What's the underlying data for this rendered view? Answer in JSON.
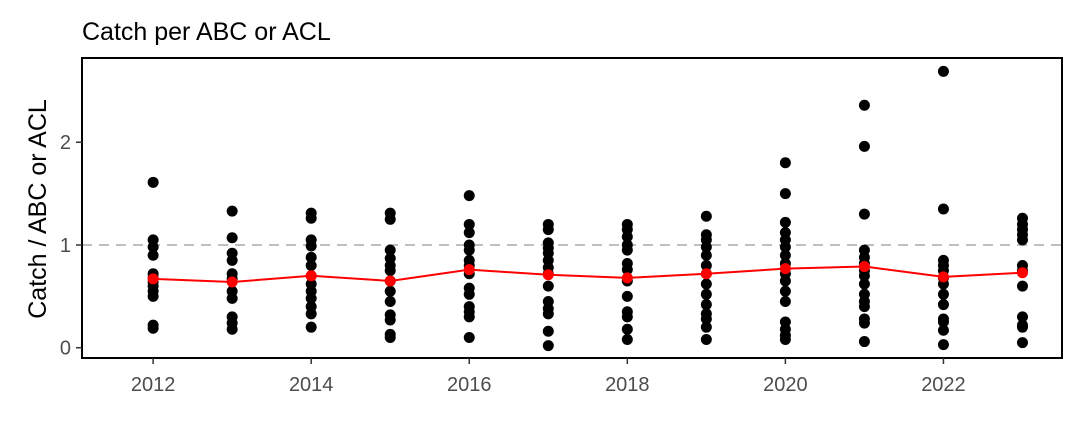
{
  "chart_data": {
    "type": "scatter",
    "title": "Catch per ABC or ACL",
    "xlabel": "",
    "ylabel": "Catch / ABC or ACL",
    "xlim": [
      2011.1,
      2023.5
    ],
    "ylim": [
      -0.1,
      2.82
    ],
    "x_ticks": [
      2012,
      2014,
      2016,
      2018,
      2020,
      2022
    ],
    "y_ticks": [
      0,
      1,
      2
    ],
    "reference_line": {
      "y": 1,
      "style": "dashed",
      "color": "#bfbfbf"
    },
    "grid": false,
    "series": [
      {
        "points_color": "#000000",
        "points": [
          [
            2012,
            1.61
          ],
          [
            2012,
            1.05
          ],
          [
            2012,
            0.98
          ],
          [
            2012,
            0.9
          ],
          [
            2012,
            0.72
          ],
          [
            2012,
            0.68
          ],
          [
            2012,
            0.64
          ],
          [
            2012,
            0.6
          ],
          [
            2012,
            0.55
          ],
          [
            2012,
            0.5
          ],
          [
            2012,
            0.22
          ],
          [
            2012,
            0.19
          ],
          [
            2013,
            1.33
          ],
          [
            2013,
            1.07
          ],
          [
            2013,
            0.92
          ],
          [
            2013,
            0.85
          ],
          [
            2013,
            0.72
          ],
          [
            2013,
            0.67
          ],
          [
            2013,
            0.55
          ],
          [
            2013,
            0.48
          ],
          [
            2013,
            0.3
          ],
          [
            2013,
            0.24
          ],
          [
            2013,
            0.18
          ],
          [
            2014,
            1.31
          ],
          [
            2014,
            1.26
          ],
          [
            2014,
            1.05
          ],
          [
            2014,
            0.99
          ],
          [
            2014,
            0.88
          ],
          [
            2014,
            0.8
          ],
          [
            2014,
            0.7
          ],
          [
            2014,
            0.62
          ],
          [
            2014,
            0.55
          ],
          [
            2014,
            0.48
          ],
          [
            2014,
            0.4
          ],
          [
            2014,
            0.33
          ],
          [
            2014,
            0.2
          ],
          [
            2015,
            1.31
          ],
          [
            2015,
            1.25
          ],
          [
            2015,
            0.95
          ],
          [
            2015,
            0.87
          ],
          [
            2015,
            0.8
          ],
          [
            2015,
            0.75
          ],
          [
            2015,
            0.65
          ],
          [
            2015,
            0.55
          ],
          [
            2015,
            0.45
          ],
          [
            2015,
            0.32
          ],
          [
            2015,
            0.27
          ],
          [
            2015,
            0.13
          ],
          [
            2015,
            0.1
          ],
          [
            2016,
            1.48
          ],
          [
            2016,
            1.2
          ],
          [
            2016,
            1.12
          ],
          [
            2016,
            1.0
          ],
          [
            2016,
            0.95
          ],
          [
            2016,
            0.85
          ],
          [
            2016,
            0.8
          ],
          [
            2016,
            0.72
          ],
          [
            2016,
            0.58
          ],
          [
            2016,
            0.52
          ],
          [
            2016,
            0.4
          ],
          [
            2016,
            0.35
          ],
          [
            2016,
            0.3
          ],
          [
            2016,
            0.1
          ],
          [
            2017,
            1.2
          ],
          [
            2017,
            1.15
          ],
          [
            2017,
            1.02
          ],
          [
            2017,
            0.97
          ],
          [
            2017,
            0.92
          ],
          [
            2017,
            0.85
          ],
          [
            2017,
            0.78
          ],
          [
            2017,
            0.72
          ],
          [
            2017,
            0.6
          ],
          [
            2017,
            0.45
          ],
          [
            2017,
            0.38
          ],
          [
            2017,
            0.33
          ],
          [
            2017,
            0.16
          ],
          [
            2017,
            0.02
          ],
          [
            2018,
            1.2
          ],
          [
            2018,
            1.15
          ],
          [
            2018,
            1.08
          ],
          [
            2018,
            1.0
          ],
          [
            2018,
            0.95
          ],
          [
            2018,
            0.82
          ],
          [
            2018,
            0.76
          ],
          [
            2018,
            0.65
          ],
          [
            2018,
            0.5
          ],
          [
            2018,
            0.35
          ],
          [
            2018,
            0.3
          ],
          [
            2018,
            0.18
          ],
          [
            2018,
            0.08
          ],
          [
            2019,
            1.28
          ],
          [
            2019,
            1.1
          ],
          [
            2019,
            1.05
          ],
          [
            2019,
            0.98
          ],
          [
            2019,
            0.9
          ],
          [
            2019,
            0.8
          ],
          [
            2019,
            0.72
          ],
          [
            2019,
            0.62
          ],
          [
            2019,
            0.52
          ],
          [
            2019,
            0.42
          ],
          [
            2019,
            0.33
          ],
          [
            2019,
            0.28
          ],
          [
            2019,
            0.2
          ],
          [
            2019,
            0.08
          ],
          [
            2020,
            1.8
          ],
          [
            2020,
            1.5
          ],
          [
            2020,
            1.22
          ],
          [
            2020,
            1.12
          ],
          [
            2020,
            1.05
          ],
          [
            2020,
            0.98
          ],
          [
            2020,
            0.9
          ],
          [
            2020,
            0.82
          ],
          [
            2020,
            0.72
          ],
          [
            2020,
            0.65
          ],
          [
            2020,
            0.55
          ],
          [
            2020,
            0.45
          ],
          [
            2020,
            0.25
          ],
          [
            2020,
            0.18
          ],
          [
            2020,
            0.12
          ],
          [
            2020,
            0.08
          ],
          [
            2021,
            2.36
          ],
          [
            2021,
            1.96
          ],
          [
            2021,
            1.3
          ],
          [
            2021,
            0.95
          ],
          [
            2021,
            0.88
          ],
          [
            2021,
            0.82
          ],
          [
            2021,
            0.75
          ],
          [
            2021,
            0.7
          ],
          [
            2021,
            0.62
          ],
          [
            2021,
            0.52
          ],
          [
            2021,
            0.45
          ],
          [
            2021,
            0.4
          ],
          [
            2021,
            0.28
          ],
          [
            2021,
            0.24
          ],
          [
            2021,
            0.06
          ],
          [
            2022,
            2.69
          ],
          [
            2022,
            1.35
          ],
          [
            2022,
            0.85
          ],
          [
            2022,
            0.8
          ],
          [
            2022,
            0.75
          ],
          [
            2022,
            0.68
          ],
          [
            2022,
            0.62
          ],
          [
            2022,
            0.52
          ],
          [
            2022,
            0.42
          ],
          [
            2022,
            0.28
          ],
          [
            2022,
            0.25
          ],
          [
            2022,
            0.17
          ],
          [
            2022,
            0.03
          ],
          [
            2023,
            1.26
          ],
          [
            2023,
            1.2
          ],
          [
            2023,
            1.15
          ],
          [
            2023,
            1.1
          ],
          [
            2023,
            1.05
          ],
          [
            2023,
            0.8
          ],
          [
            2023,
            0.75
          ],
          [
            2023,
            0.6
          ],
          [
            2023,
            0.3
          ],
          [
            2023,
            0.22
          ],
          [
            2023,
            0.2
          ],
          [
            2023,
            0.05
          ]
        ]
      },
      {
        "line_color": "#ff0000",
        "points": [
          [
            2012,
            0.67
          ],
          [
            2013,
            0.64
          ],
          [
            2014,
            0.7
          ],
          [
            2015,
            0.65
          ],
          [
            2016,
            0.76
          ],
          [
            2017,
            0.71
          ],
          [
            2018,
            0.68
          ],
          [
            2019,
            0.72
          ],
          [
            2020,
            0.77
          ],
          [
            2021,
            0.79
          ],
          [
            2022,
            0.69
          ],
          [
            2023,
            0.73
          ]
        ]
      }
    ]
  }
}
